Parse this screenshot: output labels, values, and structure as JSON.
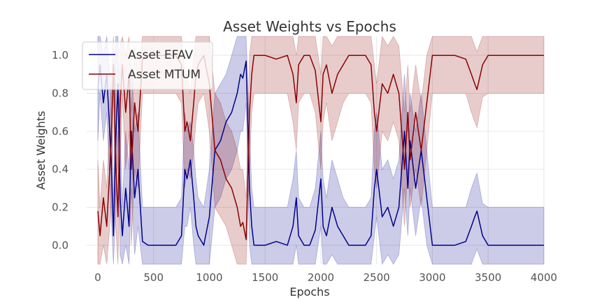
{
  "chart_data": {
    "type": "line",
    "title": "Asset Weights vs Epochs",
    "xlabel": "Epochs",
    "ylabel": "Asset Weights",
    "xlim": [
      -100,
      4000
    ],
    "ylim": [
      -0.1,
      1.1
    ],
    "x_ticks": [
      0,
      500,
      1000,
      1500,
      2000,
      2500,
      3000,
      3500,
      4000
    ],
    "y_ticks": [
      0.0,
      0.2,
      0.4,
      0.6,
      0.8,
      1.0
    ],
    "x_tick_labels": [
      "0",
      "500",
      "1000",
      "1500",
      "2000",
      "2500",
      "3000",
      "3500",
      "4000"
    ],
    "y_tick_labels": [
      "0.0",
      "0.2",
      "0.4",
      "0.6",
      "0.8",
      "1.0"
    ],
    "grid": true,
    "legend_position": "top-left",
    "series": [
      {
        "name": "Asset EFAV",
        "color": "#00008b",
        "band_color": "#00008b",
        "x": [
          0,
          20,
          50,
          80,
          120,
          140,
          160,
          180,
          200,
          220,
          250,
          280,
          300,
          330,
          360,
          400,
          450,
          500,
          550,
          600,
          650,
          700,
          750,
          780,
          800,
          830,
          860,
          880,
          900,
          950,
          1000,
          1050,
          1100,
          1150,
          1200,
          1250,
          1280,
          1300,
          1330,
          1360,
          1380,
          1400,
          1450,
          1500,
          1600,
          1700,
          1750,
          1780,
          1800,
          1850,
          1900,
          1950,
          2000,
          2020,
          2050,
          2100,
          2150,
          2200,
          2250,
          2300,
          2350,
          2400,
          2450,
          2480,
          2500,
          2550,
          2600,
          2650,
          2700,
          2750,
          2780,
          2800,
          2850,
          2900,
          2950,
          3000,
          3050,
          3100,
          3200,
          3300,
          3350,
          3380,
          3400,
          3450,
          3500,
          3600,
          3700,
          3800,
          3900,
          4000
        ],
        "values": [
          0.82,
          0.95,
          0.75,
          0.9,
          0.45,
          0.05,
          0.55,
          0.85,
          0.25,
          0.05,
          0.3,
          0.1,
          0.6,
          0.25,
          0.4,
          0.02,
          0.0,
          0.0,
          0.0,
          0.0,
          0.0,
          0.0,
          0.05,
          0.4,
          0.35,
          0.45,
          0.25,
          0.1,
          0.05,
          0.0,
          0.15,
          0.5,
          0.55,
          0.65,
          0.7,
          0.8,
          0.9,
          0.88,
          0.97,
          0.3,
          0.1,
          0.0,
          0.0,
          0.0,
          0.02,
          0.0,
          0.1,
          0.25,
          0.05,
          0.0,
          0.0,
          0.08,
          0.35,
          0.1,
          0.05,
          0.2,
          0.1,
          0.05,
          0.0,
          0.0,
          0.0,
          0.0,
          0.05,
          0.3,
          0.4,
          0.15,
          0.2,
          0.1,
          0.2,
          0.6,
          0.3,
          0.55,
          0.3,
          0.5,
          0.25,
          0.0,
          0.0,
          0.0,
          0.0,
          0.02,
          0.1,
          0.15,
          0.18,
          0.05,
          0.0,
          0.0,
          0.0,
          0.0,
          0.0,
          0.0
        ],
        "upper": [
          1.1,
          1.1,
          1.0,
          1.1,
          0.8,
          0.2,
          1.1,
          1.1,
          0.6,
          0.2,
          0.6,
          0.4,
          1.0,
          0.6,
          0.7,
          0.2,
          0.2,
          0.2,
          0.2,
          0.2,
          0.2,
          0.2,
          0.25,
          0.7,
          0.6,
          0.65,
          0.5,
          0.35,
          0.25,
          0.2,
          0.4,
          0.8,
          0.85,
          0.9,
          1.0,
          1.1,
          1.1,
          1.1,
          1.1,
          0.6,
          0.3,
          0.2,
          0.2,
          0.2,
          0.2,
          0.2,
          0.35,
          0.5,
          0.25,
          0.2,
          0.2,
          0.3,
          0.6,
          0.35,
          0.25,
          0.45,
          0.35,
          0.25,
          0.2,
          0.2,
          0.2,
          0.2,
          0.25,
          0.6,
          0.7,
          0.4,
          0.45,
          0.35,
          0.45,
          0.9,
          0.6,
          0.8,
          0.6,
          0.8,
          0.5,
          0.2,
          0.2,
          0.2,
          0.2,
          0.2,
          0.3,
          0.35,
          0.38,
          0.22,
          0.2,
          0.2,
          0.2,
          0.2,
          0.2,
          0.2
        ],
        "lower": [
          0.55,
          0.8,
          0.55,
          0.7,
          0.15,
          -0.1,
          0.2,
          0.6,
          -0.05,
          -0.1,
          0.0,
          -0.1,
          0.3,
          -0.05,
          0.1,
          -0.1,
          -0.1,
          -0.1,
          -0.1,
          -0.1,
          -0.1,
          -0.1,
          -0.1,
          0.1,
          0.1,
          0.2,
          0.0,
          -0.1,
          -0.1,
          -0.1,
          -0.1,
          0.2,
          0.25,
          0.35,
          0.4,
          0.5,
          0.6,
          0.6,
          0.75,
          0.0,
          -0.1,
          -0.1,
          -0.1,
          -0.1,
          -0.1,
          -0.1,
          -0.1,
          0.0,
          -0.1,
          -0.1,
          -0.1,
          -0.1,
          0.1,
          -0.1,
          -0.1,
          -0.05,
          -0.1,
          -0.1,
          -0.1,
          -0.1,
          -0.1,
          -0.1,
          -0.1,
          0.05,
          0.15,
          -0.1,
          -0.05,
          -0.1,
          -0.05,
          0.3,
          0.05,
          0.3,
          0.05,
          0.25,
          0.0,
          -0.1,
          -0.1,
          -0.1,
          -0.1,
          -0.1,
          -0.1,
          -0.05,
          -0.02,
          -0.1,
          -0.1,
          -0.1,
          -0.1,
          -0.1,
          -0.1,
          -0.1
        ]
      },
      {
        "name": "Asset MTUM",
        "color": "#8b0000",
        "band_color": "#8b0000",
        "x": [
          0,
          20,
          50,
          80,
          120,
          140,
          160,
          180,
          200,
          220,
          250,
          280,
          300,
          330,
          360,
          400,
          450,
          500,
          550,
          600,
          650,
          700,
          750,
          780,
          800,
          830,
          860,
          880,
          900,
          950,
          1000,
          1050,
          1100,
          1150,
          1200,
          1250,
          1280,
          1300,
          1330,
          1360,
          1380,
          1400,
          1450,
          1500,
          1600,
          1700,
          1750,
          1780,
          1800,
          1850,
          1900,
          1950,
          2000,
          2020,
          2050,
          2100,
          2150,
          2200,
          2250,
          2300,
          2350,
          2400,
          2450,
          2480,
          2500,
          2550,
          2600,
          2650,
          2700,
          2750,
          2780,
          2800,
          2850,
          2900,
          2950,
          3000,
          3050,
          3100,
          3200,
          3300,
          3350,
          3380,
          3400,
          3450,
          3500,
          3600,
          3700,
          3800,
          3900,
          4000
        ],
        "values": [
          0.18,
          0.05,
          0.25,
          0.1,
          0.55,
          0.95,
          0.45,
          0.15,
          0.75,
          0.95,
          0.7,
          0.9,
          0.4,
          0.75,
          0.6,
          0.98,
          1.0,
          1.0,
          1.0,
          1.0,
          1.0,
          1.0,
          0.95,
          0.6,
          0.65,
          0.55,
          0.75,
          0.9,
          0.95,
          1.0,
          0.85,
          0.5,
          0.45,
          0.35,
          0.3,
          0.2,
          0.1,
          0.12,
          0.03,
          0.7,
          0.9,
          1.0,
          1.0,
          1.0,
          0.98,
          1.0,
          0.9,
          0.75,
          0.95,
          1.0,
          1.0,
          0.92,
          0.65,
          0.9,
          0.95,
          0.8,
          0.9,
          0.95,
          1.0,
          1.0,
          1.0,
          1.0,
          0.95,
          0.7,
          0.6,
          0.85,
          0.8,
          0.9,
          0.8,
          0.4,
          0.7,
          0.45,
          0.7,
          0.5,
          0.75,
          1.0,
          1.0,
          1.0,
          1.0,
          0.98,
          0.9,
          0.85,
          0.82,
          0.95,
          1.0,
          1.0,
          1.0,
          1.0,
          1.0,
          1.0
        ],
        "upper": [
          0.45,
          0.2,
          0.45,
          0.3,
          0.85,
          1.1,
          0.8,
          0.4,
          1.05,
          1.1,
          1.0,
          1.1,
          0.7,
          1.05,
          0.9,
          1.1,
          1.1,
          1.1,
          1.1,
          1.1,
          1.1,
          1.1,
          1.1,
          0.9,
          0.9,
          0.8,
          1.0,
          1.1,
          1.1,
          1.1,
          1.1,
          0.8,
          0.75,
          0.65,
          0.6,
          0.5,
          0.4,
          0.4,
          0.25,
          1.0,
          1.1,
          1.1,
          1.1,
          1.1,
          1.1,
          1.1,
          1.1,
          1.0,
          1.1,
          1.1,
          1.1,
          1.1,
          0.9,
          1.1,
          1.1,
          1.05,
          1.1,
          1.1,
          1.1,
          1.1,
          1.1,
          1.1,
          1.1,
          0.95,
          0.85,
          1.1,
          1.05,
          1.1,
          1.05,
          0.7,
          0.95,
          0.7,
          0.95,
          0.75,
          1.0,
          1.1,
          1.1,
          1.1,
          1.1,
          1.1,
          1.1,
          1.05,
          1.02,
          1.1,
          1.1,
          1.1,
          1.1,
          1.1,
          1.1,
          1.1
        ],
        "lower": [
          -0.1,
          -0.1,
          0.0,
          -0.1,
          0.2,
          0.8,
          0.1,
          -0.1,
          0.4,
          0.8,
          0.4,
          0.6,
          0.0,
          0.4,
          0.3,
          0.8,
          0.8,
          0.8,
          0.8,
          0.8,
          0.8,
          0.8,
          0.75,
          0.3,
          0.4,
          0.35,
          0.5,
          0.65,
          0.75,
          0.8,
          0.6,
          0.2,
          0.15,
          0.1,
          0.0,
          -0.1,
          -0.1,
          -0.1,
          -0.1,
          0.4,
          0.7,
          0.8,
          0.8,
          0.8,
          0.8,
          0.8,
          0.65,
          0.5,
          0.75,
          0.8,
          0.8,
          0.7,
          0.4,
          0.65,
          0.75,
          0.55,
          0.65,
          0.75,
          0.8,
          0.8,
          0.8,
          0.8,
          0.75,
          0.4,
          0.3,
          0.6,
          0.55,
          0.65,
          0.55,
          0.1,
          0.4,
          0.2,
          0.4,
          0.2,
          0.5,
          0.8,
          0.8,
          0.8,
          0.8,
          0.8,
          0.7,
          0.65,
          0.62,
          0.78,
          0.8,
          0.8,
          0.8,
          0.8,
          0.8,
          0.8
        ]
      }
    ]
  }
}
